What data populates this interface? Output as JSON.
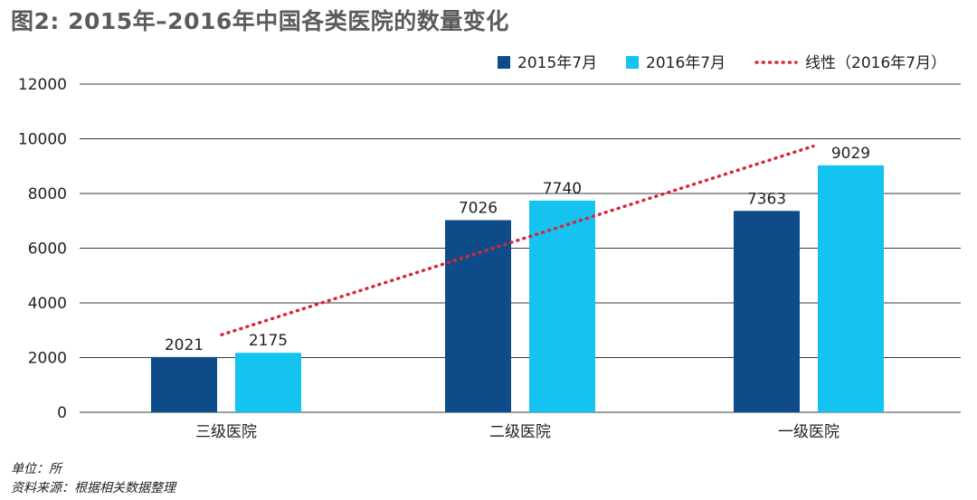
{
  "title": "图2: 2015年–2016年中国各类医院的数量变化",
  "footnotes": {
    "unit": "单位：所",
    "source": "资料来源：根据相关数据整理"
  },
  "colors": {
    "series_2015": "#0e4c89",
    "series_2016": "#14c3f0",
    "trend": "#d7283a",
    "grid": "#3a3a3a"
  },
  "chart_data": {
    "type": "bar",
    "categories": [
      "三级医院",
      "二级医院",
      "一级医院"
    ],
    "series": [
      {
        "name": "2015年7月",
        "values": [
          2021,
          7026,
          7363
        ]
      },
      {
        "name": "2016年7月",
        "values": [
          2175,
          7740,
          9029
        ]
      }
    ],
    "trendline": {
      "name": "线性（2016年7月）",
      "of_series": "2016年7月",
      "style": "dotted"
    },
    "yticks": [
      "0",
      "2000",
      "4000",
      "6000",
      "8000",
      "10000",
      "12000"
    ],
    "ylim": [
      0,
      12000
    ],
    "grid": true,
    "legend": "top-right",
    "data_labels": true
  }
}
